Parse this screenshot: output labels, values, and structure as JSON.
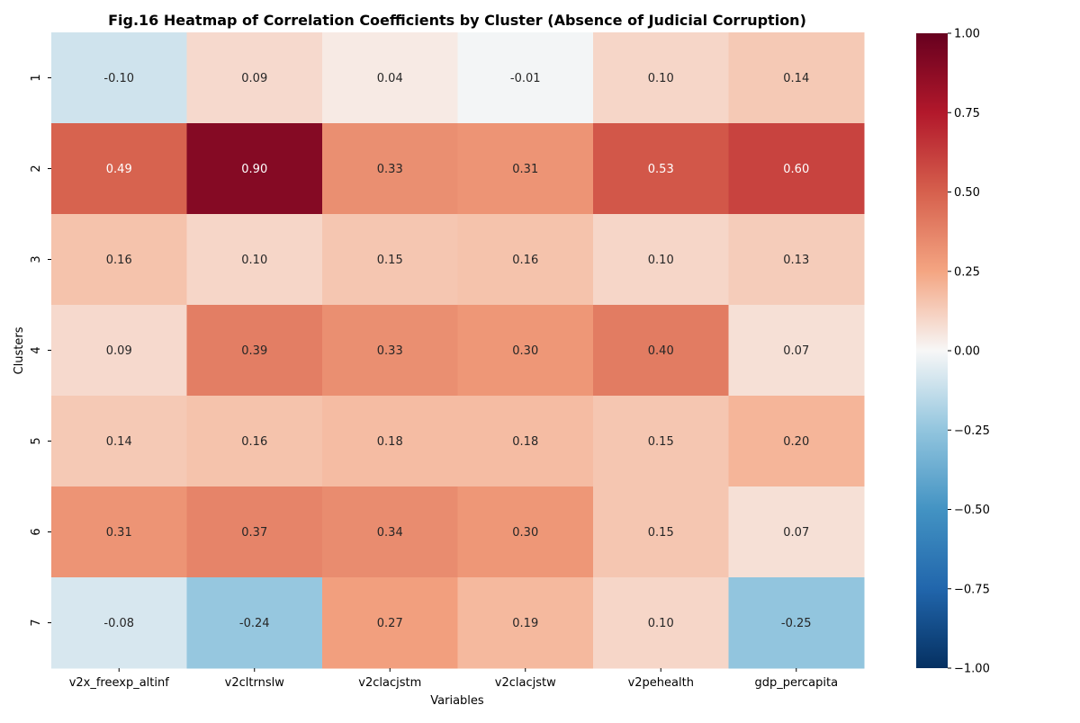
{
  "chart_data": {
    "type": "heatmap",
    "title": "Fig.16 Heatmap of Correlation Coefficients by Cluster (Absence of Judicial Corruption)",
    "xlabel": "Variables",
    "ylabel": "Clusters",
    "x_categories": [
      "v2x_freexp_altinf",
      "v2cltrnslw",
      "v2clacjstm",
      "v2clacjstw",
      "v2pehealth",
      "gdp_percapita"
    ],
    "y_categories": [
      "1",
      "2",
      "3",
      "4",
      "5",
      "6",
      "7"
    ],
    "values": [
      [
        -0.1,
        0.09,
        0.04,
        -0.01,
        0.1,
        0.14
      ],
      [
        0.49,
        0.9,
        0.33,
        0.31,
        0.53,
        0.6
      ],
      [
        0.16,
        0.1,
        0.15,
        0.16,
        0.1,
        0.13
      ],
      [
        0.09,
        0.39,
        0.33,
        0.3,
        0.4,
        0.07
      ],
      [
        0.14,
        0.16,
        0.18,
        0.18,
        0.15,
        0.2
      ],
      [
        0.31,
        0.37,
        0.34,
        0.3,
        0.15,
        0.07
      ],
      [
        -0.08,
        -0.24,
        0.27,
        0.19,
        0.1,
        -0.25
      ]
    ],
    "cell_labels": [
      [
        "-0.10",
        "0.09",
        "0.04",
        "-0.01",
        "0.10",
        "0.14"
      ],
      [
        "0.49",
        "0.90",
        "0.33",
        "0.31",
        "0.53",
        "0.60"
      ],
      [
        "0.16",
        "0.10",
        "0.15",
        "0.16",
        "0.10",
        "0.13"
      ],
      [
        "0.09",
        "0.39",
        "0.33",
        "0.30",
        "0.40",
        "0.07"
      ],
      [
        "0.14",
        "0.16",
        "0.18",
        "0.18",
        "0.15",
        "0.20"
      ],
      [
        "0.31",
        "0.37",
        "0.34",
        "0.30",
        "0.15",
        "0.07"
      ],
      [
        "-0.08",
        "-0.24",
        "0.27",
        "0.19",
        "0.10",
        "-0.25"
      ]
    ],
    "vmin": -1.0,
    "vmax": 1.0,
    "colormap": "RdBu_r",
    "colormap_stops": [
      [
        -1.0,
        "#053061"
      ],
      [
        -0.75,
        "#2166ac"
      ],
      [
        -0.5,
        "#4393c3"
      ],
      [
        -0.25,
        "#92c5de"
      ],
      [
        0.0,
        "#f7f7f7"
      ],
      [
        0.25,
        "#f4a582"
      ],
      [
        0.5,
        "#d6604d"
      ],
      [
        0.75,
        "#b2182b"
      ],
      [
        1.0,
        "#67001f"
      ]
    ],
    "colorbar_ticks": [
      "1.00",
      "0.75",
      "0.50",
      "0.25",
      "0.00",
      "−0.25",
      "−0.50",
      "−0.75",
      "−1.00"
    ],
    "colorbar_tick_values": [
      1.0,
      0.75,
      0.5,
      0.25,
      0.0,
      -0.25,
      -0.5,
      -0.75,
      -1.0
    ],
    "grid": false,
    "colorbar_position": "right"
  }
}
